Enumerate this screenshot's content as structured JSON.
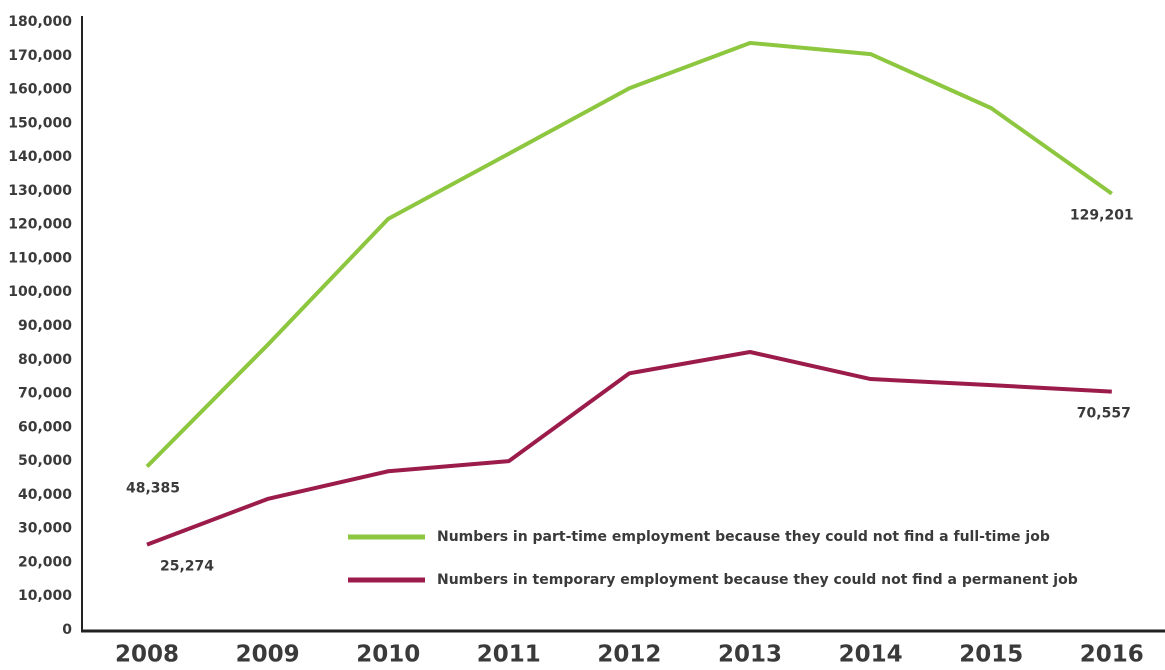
{
  "chart_data": {
    "type": "line",
    "categories": [
      "2008",
      "2009",
      "2010",
      "2011",
      "2012",
      "2013",
      "2014",
      "2015",
      "2016"
    ],
    "series": [
      {
        "name": "Numbers in part-time employment because they could not find a full-time job",
        "color": "#8dc63f",
        "values": [
          48385,
          84400,
          121700,
          141000,
          160400,
          173800,
          170500,
          154500,
          129201
        ],
        "value_labels": [
          "48,385",
          null,
          null,
          null,
          null,
          null,
          null,
          null,
          "129,201"
        ]
      },
      {
        "name": "Numbers in temporary employment because they could not find a permanent job",
        "color": "#9b1b4b",
        "values": [
          25274,
          38800,
          47000,
          50000,
          76000,
          82300,
          74300,
          72500,
          70557
        ],
        "value_labels": [
          "25,274",
          null,
          null,
          null,
          null,
          null,
          null,
          null,
          "70,557"
        ]
      }
    ],
    "ylim": [
      0,
      180000
    ],
    "yticks": [
      0,
      {
        "value": 10000,
        "label": "10,000"
      },
      {
        "value": 20000,
        "label": "20,000"
      },
      {
        "value": 30000,
        "label": "30,000"
      },
      {
        "value": 40000,
        "label": "40,000"
      },
      {
        "value": 50000,
        "label": "50,000"
      },
      {
        "value": 60000,
        "label": "60,000"
      },
      {
        "value": 70000,
        "label": "70,000"
      },
      {
        "value": 80000,
        "label": "80,000"
      },
      {
        "value": 90000,
        "label": "90,000"
      },
      {
        "value": 100000,
        "label": "100,000"
      },
      {
        "value": 110000,
        "label": "110,000"
      },
      {
        "value": 120000,
        "label": "120,000"
      },
      {
        "value": 130000,
        "label": "130,000"
      },
      {
        "value": 140000,
        "label": "140,000"
      },
      {
        "value": 150000,
        "label": "150,000"
      },
      {
        "value": 160000,
        "label": "160,000"
      },
      {
        "value": 170000,
        "label": "170,000"
      },
      {
        "value": 180000,
        "label": "180,000"
      }
    ],
    "grid": false
  }
}
